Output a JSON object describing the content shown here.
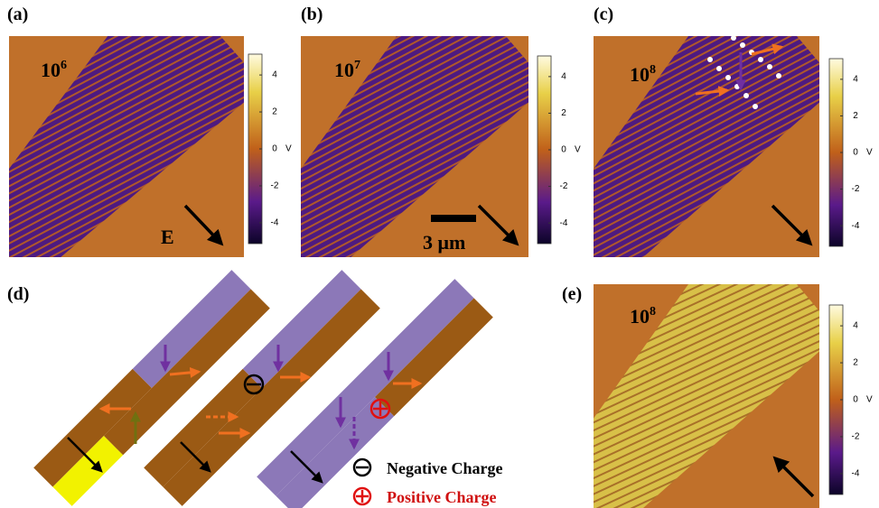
{
  "panels": [
    {
      "label": "(a)",
      "cycles": {
        "base": "10",
        "exponent": "6"
      },
      "field_label": "E",
      "colorbar": {
        "ticks": [
          4,
          2,
          0,
          -2,
          -4
        ],
        "unit": "V"
      }
    },
    {
      "label": "(b)",
      "cycles": {
        "base": "10",
        "exponent": "7"
      },
      "scale_bar": "3 μm",
      "colorbar": {
        "ticks": [
          4,
          2,
          0,
          -2,
          -4
        ],
        "unit": "V"
      }
    },
    {
      "label": "(c)",
      "cycles": {
        "base": "10",
        "exponent": "8"
      },
      "colorbar": {
        "ticks": [
          4,
          2,
          0,
          -2,
          -4
        ],
        "unit": "V"
      }
    },
    {
      "label": "(d)",
      "legend": [
        "Negative Charge",
        "Positive Charge"
      ]
    },
    {
      "label": "(e)",
      "cycles": {
        "base": "10",
        "exponent": "8"
      },
      "colorbar": {
        "ticks": [
          4,
          2,
          0,
          -2,
          -4
        ],
        "unit": "V"
      }
    }
  ]
}
